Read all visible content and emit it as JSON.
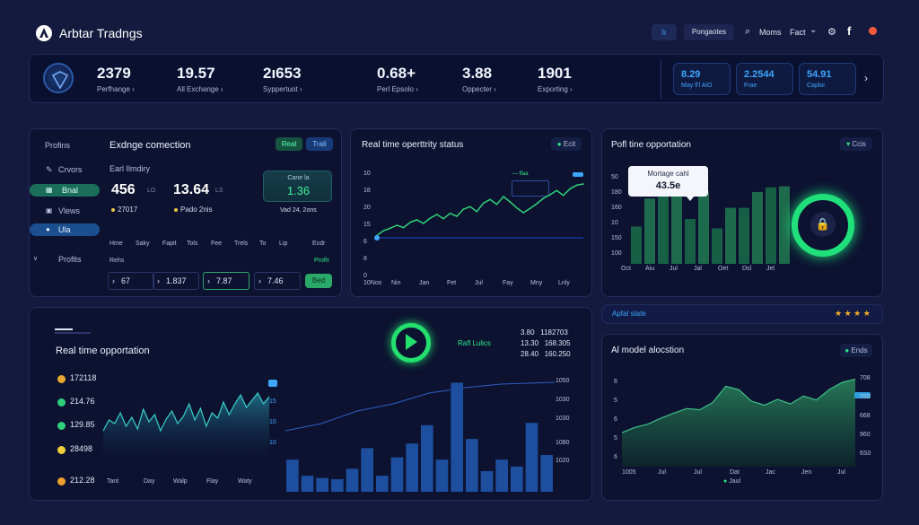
{
  "app": {
    "title": "Arbtar Tradngs"
  },
  "header": {
    "tab_active": "lı",
    "tab_pages": "Pongaotes",
    "nav_moms": "Moms",
    "nav_fact": "Fact",
    "chev": "⌄"
  },
  "top_stats": [
    {
      "value": "2379",
      "label": "Perfhange ›"
    },
    {
      "value": "19.57",
      "label": "All Exchange ›"
    },
    {
      "value": "2ı653",
      "label": "Syppertuot ›"
    },
    {
      "value": "0.68+",
      "label": "Perl Epsolo ›"
    },
    {
      "value": "3.88",
      "label": "Oppecter ›"
    },
    {
      "value": "1901",
      "label": "Exporting ›"
    }
  ],
  "top_cards": [
    {
      "value": "8.29",
      "label": "May ll'l AlO"
    },
    {
      "value": "2.2544",
      "label": "Frae"
    },
    {
      "value": "54.91",
      "label": "Caploi"
    }
  ],
  "sidebar": {
    "title": "Profins",
    "items": [
      "Crvors",
      "Bnal",
      "Vlews",
      "Ula",
      "Profits"
    ]
  },
  "exchange": {
    "title": "Exdnge comection",
    "btn_real": "Real",
    "btn_trail": "Trali",
    "sub": "Earl Ilmdiry",
    "val1": "456",
    "val1_unit": "LO",
    "val2": "13.64",
    "val2_unit": "LS",
    "foot1": "27017",
    "foot2": "Pado 2nis",
    "card_label": "Cane la",
    "card_value": "1.36",
    "card_foot": "Vad 24, 2ons",
    "cols": [
      "Hme",
      "Saky",
      "Fapit",
      "Tols",
      "Fee",
      "Trels",
      "To",
      "Lip",
      "Ecdr"
    ],
    "row_label": "Rehs",
    "row_tag": "Profit",
    "boxes": [
      "67",
      "1.837",
      "7.87",
      "7.46"
    ],
    "btn_bed": "Bed"
  },
  "status_chart": {
    "title": "Real time operttrity status",
    "tag": "Ecit",
    "legend": "— ffaa",
    "y_labels": [
      "10",
      "18",
      "20",
      "15",
      "6",
      "8",
      "0"
    ],
    "x_labels": [
      "10Nos",
      "Nin",
      "Jan",
      "Fet",
      "Jul",
      "Fay",
      "Mny",
      "Lnly"
    ]
  },
  "profit_chart": {
    "title": "Pofl tine opportation",
    "tag": "Ccis",
    "tooltip_title": "Mortage cahl",
    "tooltip_value": "43.5e",
    "y_labels": [
      "50",
      "180",
      "160",
      "10",
      "150",
      "100"
    ],
    "x_labels": [
      "Oct",
      "Aiu",
      "Jul",
      "Jal",
      "Oet",
      "Dsl",
      "Jel"
    ]
  },
  "rt_panel": {
    "title": "Real time opportation",
    "rows": [
      "172118",
      "214.76",
      "129.85",
      "28498",
      "212.28"
    ],
    "x_labels": [
      "Tant",
      "Day",
      "Walp",
      "Flay",
      "Waty"
    ],
    "y_labels": [
      "15",
      "10",
      "10"
    ],
    "center_label": "Rafl Lulics",
    "right_nums": [
      "3.80   1182703",
      "13.30   168.305",
      "28.40   160.250"
    ],
    "bar_y_labels": [
      "1050",
      "1030",
      "1030",
      "1080",
      "1020"
    ]
  },
  "rating": {
    "label": "Apfal state",
    "stars": "★ ★ ★ ★"
  },
  "ai_panel": {
    "title": "Al model alocstion",
    "tag": "Ends",
    "y_left": [
      "6",
      "5",
      "6",
      "5",
      "6"
    ],
    "y_right": [
      "708",
      "750",
      "668",
      "960",
      "6S0"
    ],
    "x_labels": [
      "1005",
      "Jul",
      "Jul",
      "Dat",
      "Jac",
      "Jen",
      "Jul"
    ],
    "legend": "Jaul"
  },
  "chart_data": [
    {
      "type": "line",
      "title": "Real time operttrity status",
      "series": [
        {
          "name": "ffaa",
          "values": [
            6.4,
            7.2,
            7.6,
            8.1,
            7.7,
            8.6,
            9.0,
            8.4,
            9.3,
            9.9,
            9.2,
            10.1,
            9.6,
            10.8,
            11.2,
            10.4,
            11.8,
            12.4,
            11.6,
            12.9,
            12.0,
            11.0,
            10.2,
            10.9,
            11.7,
            12.6,
            13.2,
            13.9,
            13.1,
            14.2,
            14.8,
            15.0
          ]
        }
      ],
      "ylim": [
        0,
        18
      ]
    },
    {
      "type": "bar",
      "title": "Pofl tine opportation",
      "values": [
        40,
        70,
        82,
        86,
        48,
        78,
        38,
        60,
        60,
        77,
        82,
        83
      ],
      "ylim": [
        0,
        100
      ]
    },
    {
      "type": "bar",
      "title": "Real time opportation",
      "values": [
        28,
        14,
        12,
        11,
        20,
        38,
        14,
        30,
        42,
        58,
        28,
        95,
        46,
        18,
        28,
        22,
        60,
        32
      ],
      "ylim": [
        0,
        100
      ]
    },
    {
      "type": "area",
      "title": "Al model alocstion",
      "values": [
        5.2,
        6.0,
        6.5,
        7.4,
        8.2,
        8.9,
        8.7,
        9.8,
        12.3,
        11.8,
        10.0,
        9.4,
        10.3,
        9.6,
        10.8,
        10.2,
        11.8,
        12.9,
        13.4
      ],
      "ylim": [
        0,
        14
      ]
    }
  ]
}
